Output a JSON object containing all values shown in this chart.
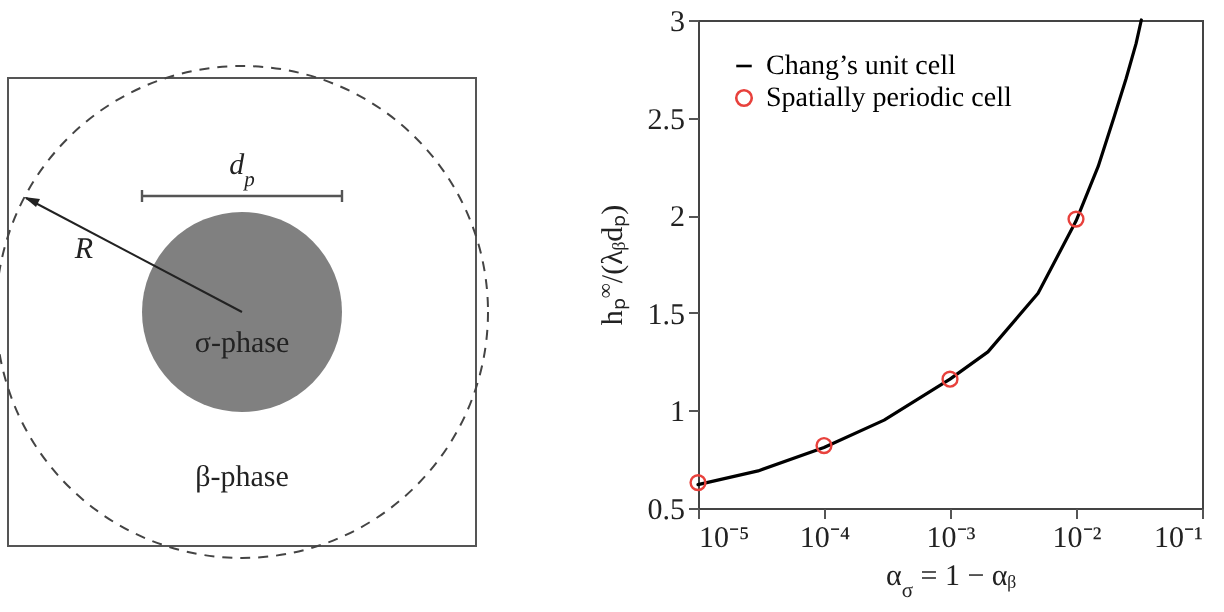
{
  "chart_data": [
    {
      "type": "other",
      "annotations": [
        "d$_{p}$",
        "R",
        "σ-phase",
        "β-phase"
      ]
    },
    {
      "type": "line",
      "xlabel": "α$_{σ}$ = 1 − αᵦ",
      "ylabel": "hₚ$^{∞}$/(λᵦdₚ)",
      "log": "x",
      "legend": "top left",
      "xlim": [
        1e-05,
        0.1
      ],
      "ylim": [
        0.5,
        3
      ],
      "xticks": [
        {
          "value": 1e-05,
          "label": "10⁻⁵"
        },
        {
          "value": 0.0001,
          "label": "10⁻⁴"
        },
        {
          "value": 0.001,
          "label": "10⁻³"
        },
        {
          "value": 0.01,
          "label": "10⁻²"
        },
        {
          "value": 0.1,
          "label": "10⁻¹"
        }
      ],
      "yticks": [
        0.5,
        1,
        1.5,
        2,
        2.5,
        3
      ],
      "series": [
        {
          "name": "Chang’s unit cell",
          "type": "line",
          "color": "#000000",
          "line_style": "solid",
          "x": [
            1e-05,
            3e-05,
            0.0001,
            0.0003,
            0.001,
            0.002,
            0.005,
            0.01,
            0.015,
            0.02,
            0.025,
            0.03,
            0.033
          ],
          "values": [
            0.62,
            0.69,
            0.81,
            0.95,
            1.16,
            1.3,
            1.6,
            1.97,
            2.25,
            2.5,
            2.7,
            2.88,
            3.0
          ]
        },
        {
          "name": "Spatially periodic cell",
          "type": "scatter",
          "color": "#e8413c",
          "marker": "circle",
          "x": [
            1e-05,
            0.0001,
            0.001,
            0.01
          ],
          "values": [
            0.63,
            0.82,
            1.16,
            1.98
          ]
        }
      ]
    }
  ]
}
